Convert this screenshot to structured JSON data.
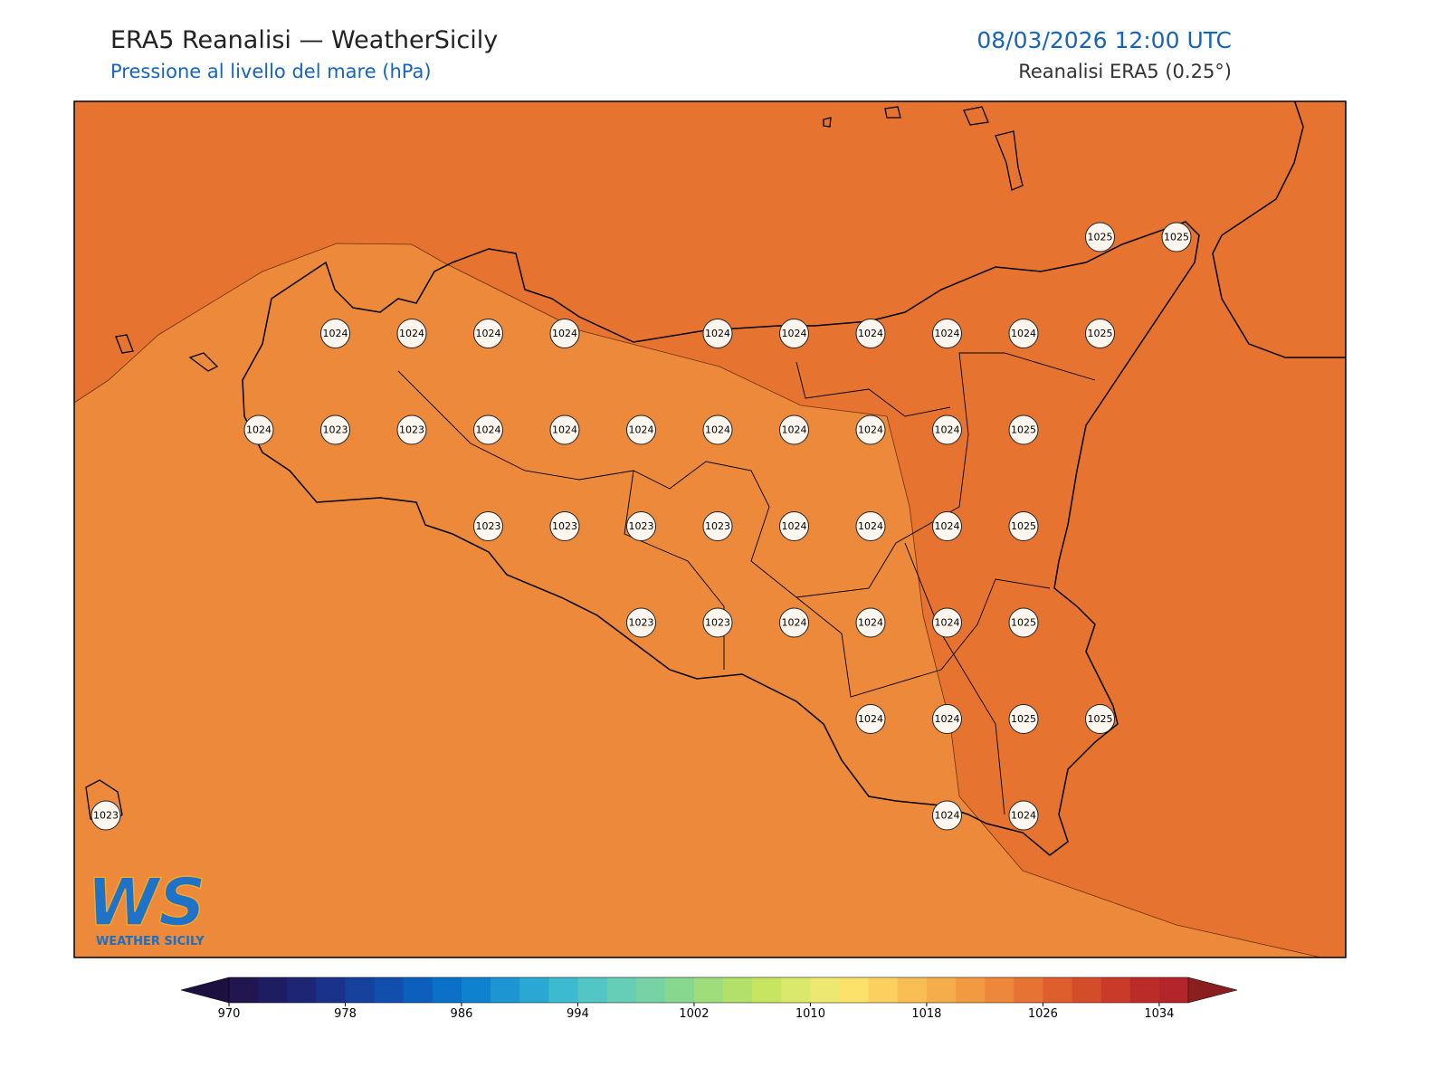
{
  "header": {
    "title": "ERA5 Reanalisi — WeatherSicily",
    "subtitle": "Pressione al livello del mare (hPa)",
    "date": "08/03/2026 12:00 UTC",
    "source": "Reanalisi ERA5 (0.25°)"
  },
  "logo": {
    "text": "WS",
    "caption": "WEATHER SICILY"
  },
  "map": {
    "points": [
      [
        null,
        null,
        null,
        null,
        null,
        null,
        null,
        null,
        null,
        null,
        null,
        null,
        null,
        1025,
        1025
      ],
      [
        null,
        null,
        null,
        1024,
        1024,
        1024,
        1024,
        null,
        1024,
        1024,
        1024,
        1024,
        1024,
        1025,
        null
      ],
      [
        null,
        null,
        1024,
        1023,
        1023,
        1024,
        1024,
        1024,
        1024,
        1024,
        1024,
        1024,
        1025,
        null,
        null
      ],
      [
        null,
        null,
        null,
        null,
        null,
        1023,
        1023,
        1023,
        1023,
        1024,
        1024,
        1024,
        1025,
        null,
        null
      ],
      [
        null,
        null,
        null,
        null,
        null,
        null,
        null,
        1023,
        1023,
        1024,
        1024,
        1024,
        1025,
        null,
        null
      ],
      [
        null,
        null,
        null,
        null,
        null,
        null,
        null,
        null,
        null,
        null,
        1024,
        1024,
        1025,
        1025,
        null
      ],
      [
        1023,
        null,
        null,
        null,
        null,
        null,
        null,
        null,
        null,
        null,
        null,
        1024,
        1024,
        null,
        null
      ]
    ]
  },
  "colorbar": {
    "clim": [
      970,
      1036
    ],
    "ticks": [
      970,
      978,
      986,
      994,
      1002,
      1010,
      1018,
      1026,
      1034
    ],
    "colors": [
      "#21164f",
      "#1e1d62",
      "#1c2675",
      "#1a3289",
      "#16419c",
      "#124fad",
      "#0d5fbd",
      "#0b70c8",
      "#0f82cf",
      "#1c95d2",
      "#2aa8d3",
      "#3cbacf",
      "#52c5c4",
      "#66cdb6",
      "#77d3a3",
      "#88d78f",
      "#9edc7c",
      "#b3e06b",
      "#c8e562",
      "#dae86b",
      "#ede872",
      "#fbe06a",
      "#fbd05e",
      "#f9be53",
      "#f5ac4a",
      "#f19a42",
      "#ec873b",
      "#e67333",
      "#de5e2d",
      "#d44d2a",
      "#c93b28",
      "#bb2b27",
      "#b3252a"
    ],
    "under": "#1b1040",
    "over": "#8b1f20"
  }
}
